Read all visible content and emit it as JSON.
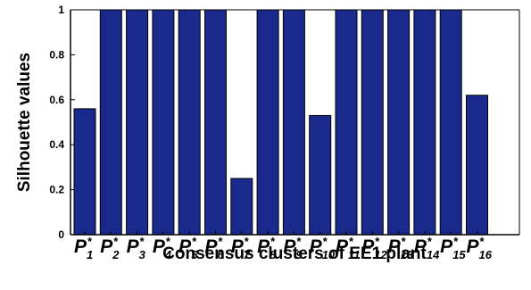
{
  "chart_data": {
    "type": "bar",
    "categories": [
      "P1*",
      "P2*",
      "P3*",
      "P4*",
      "P5*",
      "P6*",
      "P7*",
      "P8*",
      "P9*",
      "P10*",
      "P11*",
      "P12*",
      "P13*",
      "P14*",
      "P15*",
      "P16*"
    ],
    "category_parts": [
      {
        "main": "P",
        "sub": "1",
        "sup": "*"
      },
      {
        "main": "P",
        "sub": "2",
        "sup": "*"
      },
      {
        "main": "P",
        "sub": "3",
        "sup": "*"
      },
      {
        "main": "P",
        "sub": "4",
        "sup": "*"
      },
      {
        "main": "P",
        "sub": "5",
        "sup": "*"
      },
      {
        "main": "P",
        "sub": "6",
        "sup": "*"
      },
      {
        "main": "P",
        "sub": "7",
        "sup": "*"
      },
      {
        "main": "P",
        "sub": "8",
        "sup": "*"
      },
      {
        "main": "P",
        "sub": "9",
        "sup": "*"
      },
      {
        "main": "P",
        "sub": "10",
        "sup": "*"
      },
      {
        "main": "P",
        "sub": "11",
        "sup": "*"
      },
      {
        "main": "P",
        "sub": "12",
        "sup": "*"
      },
      {
        "main": "P",
        "sub": "13",
        "sup": "*"
      },
      {
        "main": "P",
        "sub": "14",
        "sup": "*"
      },
      {
        "main": "P",
        "sub": "15",
        "sup": "*"
      },
      {
        "main": "P",
        "sub": "16",
        "sup": "*"
      }
    ],
    "values": [
      0.56,
      1.0,
      1.0,
      1.0,
      1.0,
      1.0,
      0.25,
      1.0,
      1.0,
      0.53,
      1.0,
      1.0,
      1.0,
      1.0,
      1.0,
      0.62
    ],
    "title": "",
    "xlabel": "Consensus clusters of EE1 plant",
    "ylabel": "Silhouette values",
    "ylim": [
      0,
      1
    ],
    "yticks": [
      0,
      0.2,
      0.4,
      0.6,
      0.8,
      1
    ],
    "ytick_labels": [
      "0",
      "0.2",
      "0.4",
      "0.6",
      "0.8",
      "1"
    ],
    "grid": false,
    "legend": "none",
    "bar_color": "#1a2a8c",
    "bar_edge_color": "#000000"
  }
}
